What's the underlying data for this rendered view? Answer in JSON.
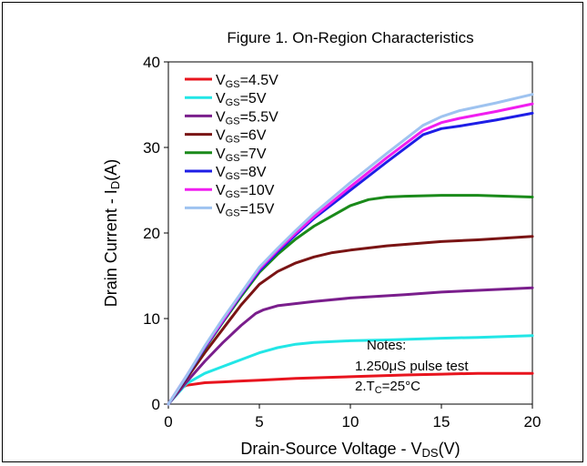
{
  "chart_data": {
    "type": "line",
    "title": "Figure 1. On-Region Characteristics",
    "xlabel": {
      "main": "Drain-Source Voltage  -  V",
      "sub": "DS",
      "tail": "(V)"
    },
    "ylabel": {
      "main": "Drain Current  -  I",
      "sub": "D",
      "tail": "(A)"
    },
    "xlim": [
      0,
      20
    ],
    "ylim": [
      0,
      40
    ],
    "xticks": [
      0,
      5,
      10,
      15,
      20
    ],
    "yticks": [
      0,
      10,
      20,
      30,
      40
    ],
    "grid": false,
    "legend_position": "top-left",
    "series": [
      {
        "name": "V_GS=4.5V",
        "label_main": "V",
        "label_sub": "GS",
        "label_tail": "=4.5V",
        "color": "#e8141e",
        "x": [
          0,
          0.3,
          0.6,
          1,
          2,
          3,
          4,
          5,
          7,
          10,
          13,
          15,
          17,
          20
        ],
        "y": [
          0,
          0.9,
          1.8,
          2.2,
          2.5,
          2.6,
          2.7,
          2.8,
          3.0,
          3.2,
          3.4,
          3.5,
          3.6,
          3.6
        ]
      },
      {
        "name": "V_GS=5V",
        "label_main": "V",
        "label_sub": "GS",
        "label_tail": "=5V",
        "color": "#22e6e6",
        "x": [
          0,
          0.5,
          1,
          2,
          3,
          4,
          5,
          6,
          7,
          8,
          10,
          12,
          15,
          17,
          20
        ],
        "y": [
          0,
          1.2,
          2.4,
          3.6,
          4.4,
          5.2,
          6.0,
          6.6,
          7.0,
          7.2,
          7.4,
          7.5,
          7.7,
          7.8,
          8.0
        ]
      },
      {
        "name": "V_GS=5.5V",
        "label_main": "V",
        "label_sub": "GS",
        "label_tail": "=5.5V",
        "color": "#7a1e8c",
        "x": [
          0,
          1,
          2,
          3,
          4,
          4.8,
          5.2,
          6,
          8,
          10,
          13,
          15,
          17,
          20
        ],
        "y": [
          0,
          2.6,
          5.0,
          7.2,
          9.2,
          10.6,
          11.0,
          11.5,
          12.0,
          12.4,
          12.8,
          13.1,
          13.3,
          13.6
        ]
      },
      {
        "name": "V_GS=6V",
        "label_main": "V",
        "label_sub": "GS",
        "label_tail": "=6V",
        "color": "#7a1414",
        "x": [
          0,
          1,
          2,
          3,
          4,
          5,
          6,
          7,
          8,
          9,
          10,
          12,
          15,
          17,
          20
        ],
        "y": [
          0,
          3.0,
          6.0,
          8.8,
          11.6,
          14.0,
          15.5,
          16.5,
          17.2,
          17.7,
          18.0,
          18.5,
          19.0,
          19.2,
          19.6
        ]
      },
      {
        "name": "V_GS=7V",
        "label_main": "V",
        "label_sub": "GS",
        "label_tail": "=7V",
        "color": "#1a8a1a",
        "x": [
          0,
          1,
          2,
          3,
          4,
          5,
          6,
          7,
          8,
          9,
          10,
          11,
          12,
          13,
          15,
          17,
          20
        ],
        "y": [
          0,
          3.2,
          6.5,
          9.6,
          12.6,
          15.4,
          17.5,
          19.3,
          20.8,
          22.0,
          23.2,
          23.9,
          24.2,
          24.3,
          24.4,
          24.4,
          24.2
        ]
      },
      {
        "name": "V_GS=8V",
        "label_main": "V",
        "label_sub": "GS",
        "label_tail": "=8V",
        "color": "#1e1ee6",
        "x": [
          0,
          1,
          2,
          3,
          4,
          5,
          6,
          7,
          8,
          10,
          12,
          14,
          15,
          16,
          18,
          20
        ],
        "y": [
          0,
          3.2,
          6.6,
          9.7,
          12.8,
          15.6,
          17.8,
          19.8,
          21.7,
          25.0,
          28.3,
          31.5,
          32.2,
          32.5,
          33.2,
          34.0
        ]
      },
      {
        "name": "V_GS=10V",
        "label_main": "V",
        "label_sub": "GS",
        "label_tail": "=10V",
        "color": "#f01ef0",
        "x": [
          0,
          1,
          2,
          3,
          4,
          5,
          6,
          7,
          8,
          10,
          12,
          14,
          15,
          16,
          18,
          20
        ],
        "y": [
          0,
          3.3,
          6.7,
          9.8,
          12.9,
          15.8,
          18.0,
          20.0,
          21.9,
          25.4,
          28.8,
          32.0,
          32.9,
          33.4,
          34.2,
          35.1
        ]
      },
      {
        "name": "V_GS=15V",
        "label_main": "V",
        "label_sub": "GS",
        "label_tail": "=15V",
        "color": "#9ec3f0",
        "x": [
          0,
          1,
          2,
          3,
          4,
          5,
          6,
          7,
          8,
          10,
          12,
          14,
          15,
          16,
          18,
          20
        ],
        "y": [
          0,
          3.3,
          6.8,
          10.0,
          13.0,
          16.0,
          18.2,
          20.3,
          22.3,
          25.9,
          29.3,
          32.6,
          33.6,
          34.3,
          35.2,
          36.2
        ]
      }
    ],
    "notes": [
      {
        "text": "Notes:"
      },
      {
        "text": "1.250μS pulse test"
      },
      {
        "main": "2.T",
        "sub": "C",
        "tail": "=25°C"
      }
    ]
  }
}
